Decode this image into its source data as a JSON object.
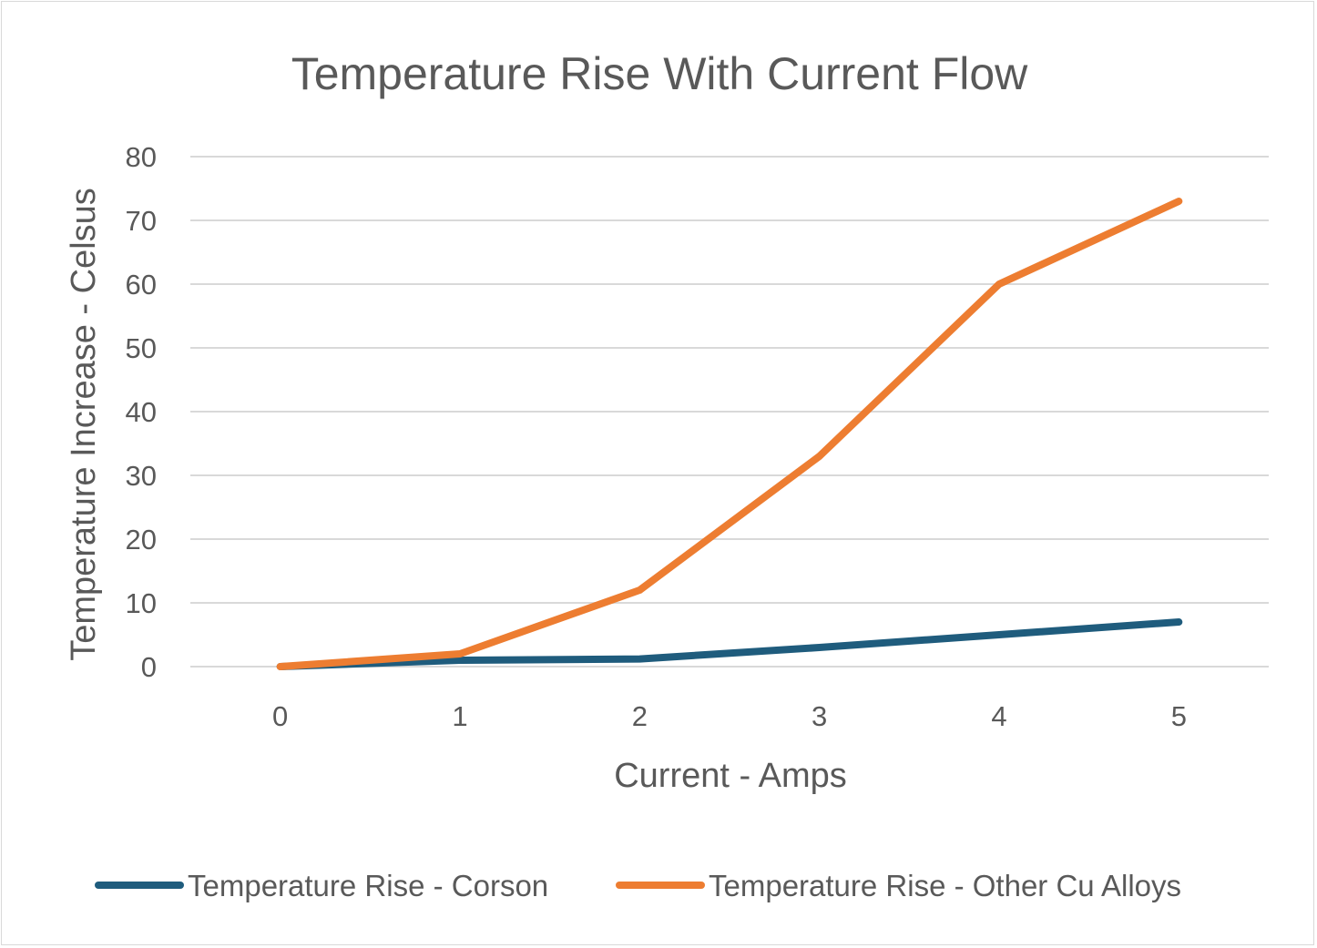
{
  "chart_data": {
    "type": "line",
    "title": "Temperature Rise With Current Flow",
    "xlabel": "Current - Amps",
    "ylabel": "Temperature Increase - Celsus",
    "x": [
      0,
      1,
      2,
      3,
      4,
      5
    ],
    "ylim": [
      0,
      80
    ],
    "yticks": [
      0,
      10,
      20,
      30,
      40,
      50,
      60,
      70,
      80
    ],
    "grid": true,
    "legend_position": "bottom",
    "series": [
      {
        "name": "Temperature Rise -  Corson",
        "color": "#1f5c7d",
        "values": [
          0,
          1,
          1.2,
          3,
          5,
          7
        ]
      },
      {
        "name": "Temperature Rise -  Other Cu Alloys",
        "color": "#ed7d31",
        "values": [
          0,
          2,
          12,
          33,
          60,
          73
        ]
      }
    ]
  }
}
